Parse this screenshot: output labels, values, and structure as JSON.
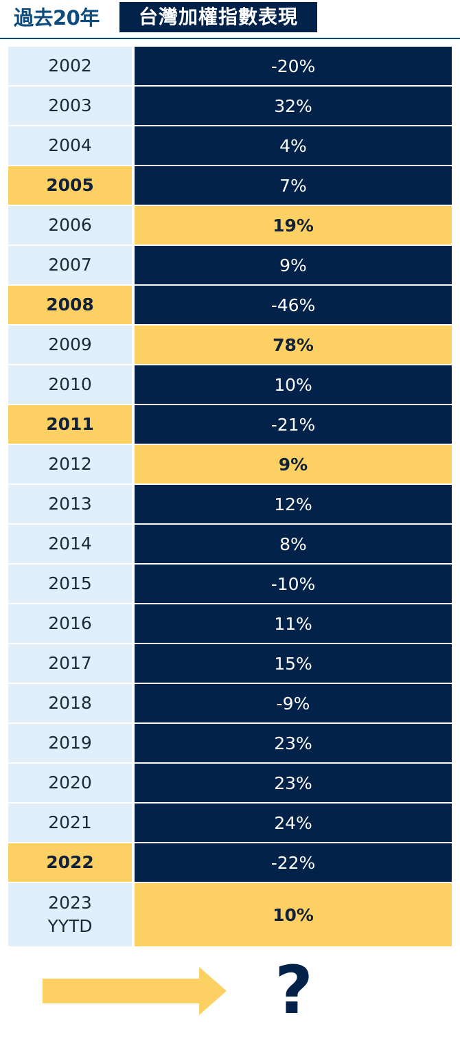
{
  "header": {
    "left_title": "過去20年",
    "right_title": "台灣加權指數表現"
  },
  "chart_data": {
    "type": "table",
    "rows": [
      {
        "year": "2002",
        "value": "-20%",
        "year_highlight": false,
        "value_highlight": false
      },
      {
        "year": "2003",
        "value": "32%",
        "year_highlight": false,
        "value_highlight": false
      },
      {
        "year": "2004",
        "value": "4%",
        "year_highlight": false,
        "value_highlight": false
      },
      {
        "year": "2005",
        "value": "7%",
        "year_highlight": true,
        "value_highlight": false
      },
      {
        "year": "2006",
        "value": "19%",
        "year_highlight": false,
        "value_highlight": true
      },
      {
        "year": "2007",
        "value": "9%",
        "year_highlight": false,
        "value_highlight": false
      },
      {
        "year": "2008",
        "value": "-46%",
        "year_highlight": true,
        "value_highlight": false
      },
      {
        "year": "2009",
        "value": "78%",
        "year_highlight": false,
        "value_highlight": true
      },
      {
        "year": "2010",
        "value": "10%",
        "year_highlight": false,
        "value_highlight": false
      },
      {
        "year": "2011",
        "value": "-21%",
        "year_highlight": true,
        "value_highlight": false
      },
      {
        "year": "2012",
        "value": "9%",
        "year_highlight": false,
        "value_highlight": true
      },
      {
        "year": "2013",
        "value": "12%",
        "year_highlight": false,
        "value_highlight": false
      },
      {
        "year": "2014",
        "value": "8%",
        "year_highlight": false,
        "value_highlight": false
      },
      {
        "year": "2015",
        "value": "-10%",
        "year_highlight": false,
        "value_highlight": false
      },
      {
        "year": "2016",
        "value": "11%",
        "year_highlight": false,
        "value_highlight": false
      },
      {
        "year": "2017",
        "value": "15%",
        "year_highlight": false,
        "value_highlight": false
      },
      {
        "year": "2018",
        "value": "-9%",
        "year_highlight": false,
        "value_highlight": false
      },
      {
        "year": "2019",
        "value": "23%",
        "year_highlight": false,
        "value_highlight": false
      },
      {
        "year": "2020",
        "value": "23%",
        "year_highlight": false,
        "value_highlight": false
      },
      {
        "year": "2021",
        "value": "24%",
        "year_highlight": false,
        "value_highlight": false
      },
      {
        "year": "2022",
        "value": "-22%",
        "year_highlight": true,
        "value_highlight": false
      },
      {
        "year": "2023\nYYTD",
        "value": "10%",
        "year_highlight": false,
        "value_highlight": true
      }
    ]
  },
  "footer": {
    "arrow_icon": "right-arrow-icon",
    "question_mark": "?"
  },
  "colors": {
    "navy": "#02224a",
    "yellow": "#fdd064",
    "light_blue": "#e1effa",
    "title_blue": "#0e4c7f"
  }
}
